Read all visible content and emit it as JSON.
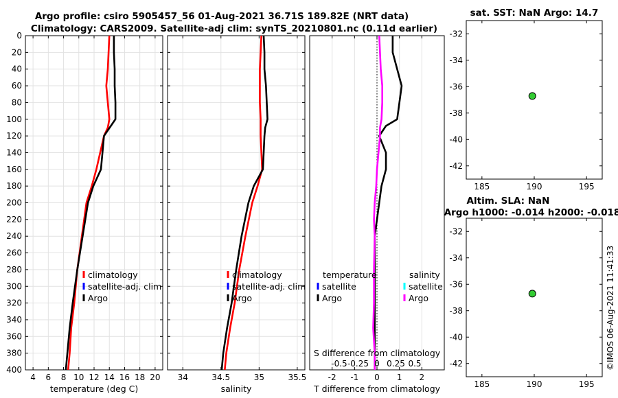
{
  "titles": {
    "line1": "Argo profile: csiro 5905457_56 01-Aug-2021 36.71S 189.82E (NRT data)",
    "line2": "Climatology: CARS2009. Satellite-adj clim: synTS_20210801.nc (0.11d earlier)",
    "sst": "sat. SST: NaN Argo: 14.7",
    "sla1": "Altim. SLA: NaN",
    "sla2": "Argo h1000: -0.014 h2000: -0.018"
  },
  "stamp": "©IMOS 06-Aug-2021 11:41:33",
  "colors": {
    "climatology": "#ff0000",
    "satellite_adj": "#0000ff",
    "argo": "#000000",
    "salinity_argo": "#ff00ff",
    "salinity_satellite": "#00ffff",
    "marker": "#33cc33"
  },
  "chart_data": [
    {
      "type": "line",
      "name": "temperature",
      "xlabel": "temperature (deg C)",
      "ylabel": "",
      "xlim": [
        3,
        21
      ],
      "ylim": [
        400,
        0
      ],
      "xticks": [
        4,
        6,
        8,
        10,
        12,
        14,
        16,
        18,
        20
      ],
      "yticks": [
        0,
        20,
        40,
        60,
        80,
        100,
        120,
        140,
        160,
        180,
        200,
        220,
        240,
        260,
        280,
        300,
        320,
        340,
        360,
        380,
        400
      ],
      "grid": true,
      "legend": [
        "climatology",
        "satellite-adj. clim",
        "Argo"
      ],
      "series": [
        {
          "name": "climatology",
          "color": "#ff0000",
          "x": [
            14.0,
            13.9,
            13.8,
            13.6,
            13.8,
            14.0,
            13.8,
            13.3,
            12.8,
            12.3,
            11.7,
            11.0,
            10.4,
            9.8,
            9.4,
            9.0,
            8.8,
            8.6
          ],
          "y": [
            0,
            20,
            40,
            60,
            80,
            100,
            110,
            120,
            140,
            160,
            180,
            200,
            240,
            280,
            320,
            350,
            380,
            400
          ]
        },
        {
          "name": "Argo",
          "color": "#000000",
          "x": [
            14.6,
            14.6,
            14.7,
            14.7,
            14.8,
            14.8,
            14.2,
            13.3,
            13.1,
            12.9,
            11.9,
            11.2,
            10.5,
            9.8,
            9.2,
            8.8,
            8.5,
            8.3
          ],
          "y": [
            0,
            20,
            40,
            60,
            80,
            100,
            108,
            120,
            140,
            160,
            180,
            200,
            240,
            280,
            320,
            350,
            380,
            400
          ]
        }
      ]
    },
    {
      "type": "line",
      "name": "salinity",
      "xlabel": "salinity",
      "ylabel": "",
      "xlim": [
        33.8,
        35.6
      ],
      "ylim": [
        400,
        0
      ],
      "xticks": [
        34,
        34.5,
        35,
        35.5
      ],
      "yticks": [
        0,
        20,
        40,
        60,
        80,
        100,
        120,
        140,
        160,
        180,
        200,
        220,
        240,
        260,
        280,
        300,
        320,
        340,
        360,
        380,
        400
      ],
      "grid": true,
      "legend": [
        "climatology",
        "satellite-adj. clim",
        "Argo"
      ],
      "series": [
        {
          "name": "climatology",
          "color": "#ff0000",
          "x": [
            35.03,
            35.02,
            35.01,
            35.01,
            35.01,
            35.02,
            35.02,
            35.02,
            35.03,
            35.04,
            34.98,
            34.91,
            34.82,
            34.74,
            34.68,
            34.62,
            34.57,
            34.55
          ],
          "y": [
            0,
            20,
            40,
            60,
            80,
            100,
            110,
            120,
            140,
            160,
            180,
            200,
            240,
            280,
            320,
            350,
            380,
            400
          ]
        },
        {
          "name": "Argo",
          "color": "#000000",
          "x": [
            35.06,
            35.07,
            35.07,
            35.09,
            35.1,
            35.11,
            35.08,
            35.07,
            35.06,
            35.05,
            34.93,
            34.86,
            34.77,
            34.7,
            34.64,
            34.58,
            34.53,
            34.51
          ],
          "y": [
            0,
            20,
            40,
            60,
            80,
            100,
            110,
            120,
            140,
            160,
            180,
            200,
            240,
            280,
            320,
            350,
            380,
            400
          ]
        }
      ]
    },
    {
      "type": "line",
      "name": "difference_from_climatology",
      "xlabel": "T difference from climatology",
      "xlabel_top": "S difference from climatology",
      "xlim": [
        -3,
        3
      ],
      "ylim": [
        400,
        0
      ],
      "xticks": [
        -2,
        -1,
        0,
        1,
        2
      ],
      "xticklabels": [
        "-2",
        "-1",
        "0",
        "1",
        "2"
      ],
      "s_xticks": [
        -0.5,
        -0.25,
        0,
        0.25,
        0.5
      ],
      "s_xticklabels": [
        "-0.5",
        "-0.25",
        "0",
        "0.25",
        "0.5"
      ],
      "grid": true,
      "zero_line": "dotted",
      "legend_temperature": {
        "header": "temperature",
        "items": [
          "satellite",
          "Argo"
        ]
      },
      "legend_salinity": {
        "header": "salinity",
        "items": [
          "satellite",
          "Argo"
        ]
      },
      "series": [
        {
          "name": "temperature Argo",
          "color": "#000000",
          "x": [
            0.7,
            0.7,
            0.9,
            1.1,
            1.0,
            0.9,
            0.4,
            0.1,
            0.4,
            0.4,
            0.2,
            0.1,
            0.0,
            -0.1,
            -0.1,
            -0.1,
            -0.1,
            -0.1,
            -0.1
          ],
          "y": [
            0,
            20,
            40,
            60,
            80,
            100,
            108,
            120,
            140,
            160,
            180,
            200,
            220,
            240,
            280,
            320,
            350,
            380,
            400
          ]
        },
        {
          "name": "salinity Argo",
          "color": "#ff00ff",
          "x": [
            0.03,
            0.04,
            0.05,
            0.07,
            0.07,
            0.06,
            0.04,
            0.04,
            0.02,
            0.0,
            -0.01,
            -0.03,
            -0.04,
            -0.03,
            -0.04,
            -0.04,
            -0.05,
            -0.03,
            -0.03
          ],
          "y": [
            0,
            20,
            40,
            60,
            80,
            100,
            110,
            120,
            140,
            160,
            180,
            200,
            220,
            240,
            280,
            320,
            350,
            380,
            400
          ]
        }
      ]
    },
    {
      "type": "scatter",
      "name": "sst_location",
      "xlim": [
        183.5,
        196.5
      ],
      "ylim": [
        -43,
        -31
      ],
      "xticks": [
        185,
        190,
        195
      ],
      "yticks": [
        -32,
        -34,
        -36,
        -38,
        -40,
        -42
      ],
      "grid": false,
      "points": [
        {
          "x": 189.82,
          "y": -36.71
        }
      ]
    },
    {
      "type": "scatter",
      "name": "sla_location",
      "xlim": [
        183.5,
        196.5
      ],
      "ylim": [
        -43,
        -31
      ],
      "xticks": [
        185,
        190,
        195
      ],
      "yticks": [
        -32,
        -34,
        -36,
        -38,
        -40,
        -42
      ],
      "grid": false,
      "points": [
        {
          "x": 189.82,
          "y": -36.71
        }
      ]
    }
  ]
}
